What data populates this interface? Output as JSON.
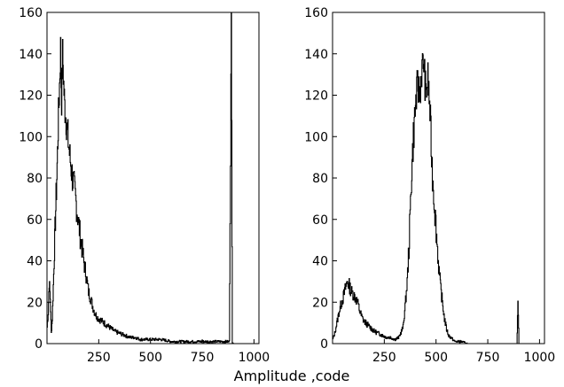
{
  "chart_data": [
    {
      "type": "histogram",
      "title": "",
      "xlabel": "",
      "ylabel": "",
      "xlim": [
        0,
        1024
      ],
      "ylim": [
        0,
        160
      ],
      "xticks": [
        250,
        500,
        750,
        1000
      ],
      "yticks": [
        0,
        20,
        40,
        60,
        80,
        100,
        120,
        140,
        160
      ],
      "series": [
        {
          "x": [
            0,
            5,
            10,
            15,
            20,
            25,
            30,
            35,
            40,
            45,
            50,
            55,
            60,
            65,
            70,
            75,
            80,
            85,
            90,
            95,
            100,
            110,
            120,
            130,
            140,
            150,
            160,
            170,
            180,
            190,
            200,
            210,
            220,
            230,
            240,
            250,
            275,
            300,
            325,
            350,
            375,
            400,
            425,
            450,
            500,
            550,
            600,
            650,
            700,
            750,
            800,
            850,
            880,
            890,
            895,
            900,
            920,
            950,
            1000,
            1024
          ],
          "y": [
            8,
            15,
            30,
            22,
            5,
            12,
            28,
            45,
            60,
            75,
            92,
            110,
            125,
            143,
            118,
            140,
            125,
            115,
            110,
            105,
            100,
            90,
            82,
            75,
            68,
            60,
            52,
            45,
            38,
            32,
            25,
            22,
            18,
            15,
            13,
            12,
            10,
            8,
            6,
            5,
            4,
            3,
            3,
            2,
            2,
            2,
            1,
            1,
            1,
            1,
            1,
            1,
            1,
            157,
            1,
            0,
            0,
            0,
            0,
            0
          ]
        }
      ]
    },
    {
      "type": "histogram",
      "title": "",
      "xlabel": "",
      "ylabel": "",
      "xlim": [
        0,
        1024
      ],
      "ylim": [
        0,
        160
      ],
      "xticks": [
        250,
        500,
        750,
        1000
      ],
      "yticks": [
        0,
        20,
        40,
        60,
        80,
        100,
        120,
        140,
        160
      ],
      "series": [
        {
          "x": [
            0,
            10,
            20,
            30,
            40,
            50,
            60,
            70,
            80,
            90,
            100,
            110,
            120,
            130,
            140,
            150,
            160,
            170,
            180,
            190,
            200,
            220,
            240,
            260,
            280,
            300,
            320,
            340,
            350,
            360,
            370,
            380,
            390,
            400,
            410,
            420,
            430,
            440,
            450,
            460,
            470,
            480,
            490,
            500,
            510,
            520,
            530,
            540,
            550,
            560,
            570,
            580,
            590,
            600,
            620,
            650,
            700,
            750,
            800,
            850,
            890,
            895,
            900,
            950,
            1000,
            1024
          ],
          "y": [
            2,
            5,
            10,
            15,
            19,
            22,
            26,
            30,
            28,
            25,
            24,
            22,
            20,
            16,
            13,
            11,
            10,
            9,
            8,
            7,
            6,
            5,
            4,
            3,
            3,
            2,
            3,
            8,
            18,
            30,
            50,
            80,
            100,
            115,
            125,
            120,
            132,
            136,
            120,
            128,
            112,
            85,
            70,
            55,
            40,
            28,
            20,
            12,
            7,
            4,
            3,
            2,
            1,
            1,
            1,
            0,
            0,
            0,
            0,
            0,
            0,
            19,
            0,
            0,
            0,
            0
          ]
        }
      ]
    }
  ],
  "figure": {
    "xlabel": "Amplitude ,code",
    "tick_labels_x": [
      "250",
      "500",
      "750",
      "1000"
    ],
    "tick_labels_y": [
      "0",
      "20",
      "40",
      "60",
      "80",
      "100",
      "120",
      "140",
      "160"
    ]
  }
}
